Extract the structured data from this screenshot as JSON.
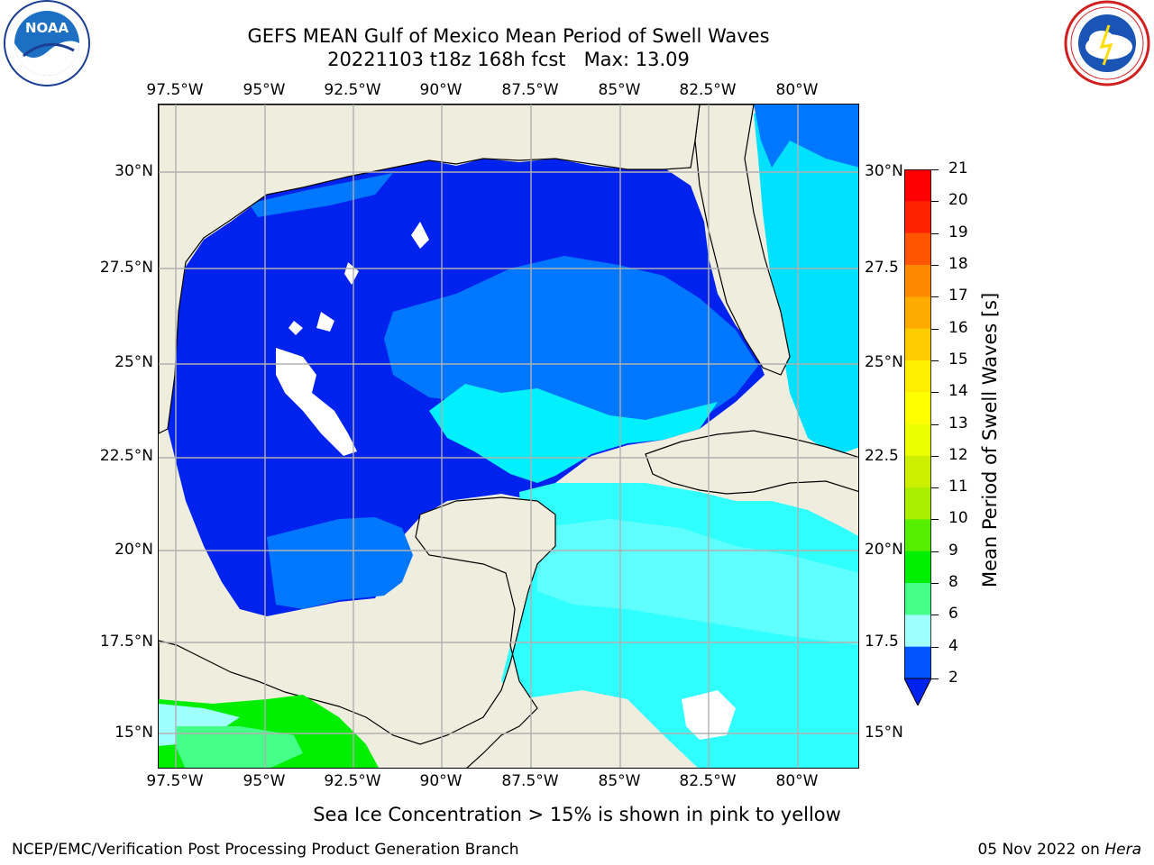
{
  "header": {
    "title_line1": "GEFS MEAN Gulf of Mexico Mean Period of Swell Waves",
    "title_line2": "20221103 t18z 168h fcst   Max: 13.09"
  },
  "logos": {
    "left": {
      "text": "NOAA",
      "ring_text": "NATIONAL OCEANIC AND ATMOSPHERIC ADMINISTRATION · U.S. DEPARTMENT OF COMMERCE"
    },
    "right": {
      "ring_text": "NATIONAL WEATHER SERVICE"
    }
  },
  "map": {
    "lon_ticks": [
      "97.5°W",
      "95°W",
      "92.5°W",
      "90°W",
      "87.5°W",
      "85°W",
      "82.5°W",
      "80°W"
    ],
    "lat_ticks_left": [
      "30°N",
      "27.5°N",
      "25°N",
      "22.5°N",
      "20°N",
      "17.5°N",
      "15°N"
    ],
    "lat_ticks_right": [
      "30°N",
      "27.5",
      "25°N",
      "22.5",
      "20°N",
      "17.5",
      "15°N"
    ]
  },
  "colorbar": {
    "label": "Mean Period of Swell Waves [s]",
    "levels": [
      "2",
      "4",
      "6",
      "8",
      "9",
      "10",
      "11",
      "12",
      "13",
      "14",
      "15",
      "16",
      "17",
      "18",
      "19",
      "20",
      "21"
    ],
    "colors": [
      "#0055ff",
      "#00e0ff",
      "#40ffff",
      "#a0ffff",
      "#44ff88",
      "#00ee00",
      "#55ee00",
      "#aaee00",
      "#ccee00",
      "#eeff00",
      "#ffff00",
      "#ffee00",
      "#ffcc00",
      "#ffaa00",
      "#ff8800",
      "#ff5500",
      "#ff2200",
      "#ff0000"
    ],
    "under_color": "#0022ee"
  },
  "caption": "Sea Ice Concentration > 15% is shown in pink to yellow",
  "footer": {
    "left": "NCEP/EMC/Verification Post Processing Product Generation Branch",
    "right_date": "05 Nov 2022 on ",
    "right_host": "Hera"
  }
}
